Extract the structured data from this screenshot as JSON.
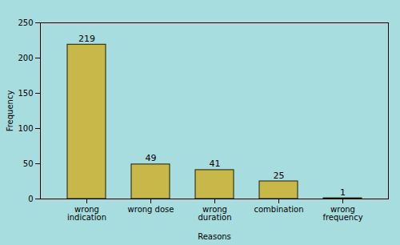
{
  "chart_data": {
    "type": "bar",
    "categories": [
      "wrong\nindication",
      "wrong dose",
      "wrong\nduration",
      "combination",
      "wrong\nfrequency"
    ],
    "values": [
      219,
      49,
      41,
      25,
      1
    ],
    "color": "#c8b84a",
    "xlabel": "Reasons",
    "ylabel": "Frequency",
    "ylim": [
      0,
      250
    ],
    "yticks": [
      0,
      50,
      100,
      150,
      200,
      250
    ],
    "grid": false,
    "data_labels": true
  }
}
